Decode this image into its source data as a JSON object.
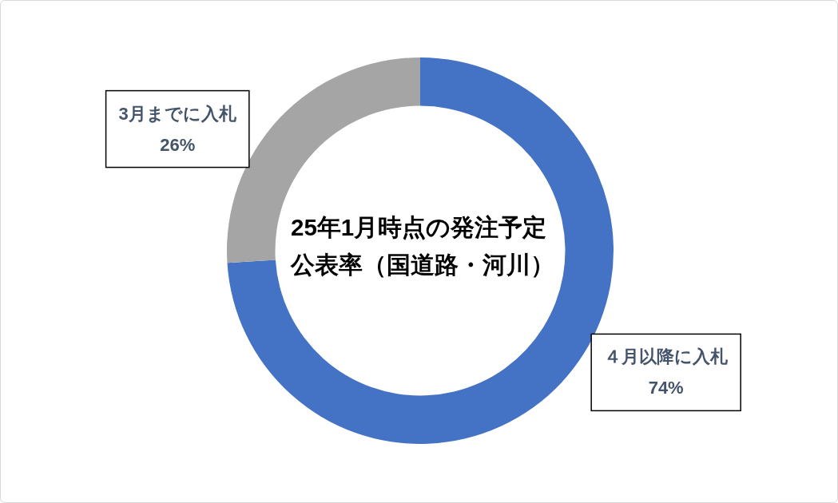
{
  "chart_data": {
    "type": "donut",
    "title": "25年1月時点の発注予定公表率（国道路・河川）",
    "categories": [
      "４月以降に入札",
      "3月までに入札"
    ],
    "values": [
      74,
      26
    ],
    "colors": [
      "#4472c4",
      "#a5a5a5"
    ],
    "value_labels": [
      "74%",
      "26%"
    ]
  }
}
